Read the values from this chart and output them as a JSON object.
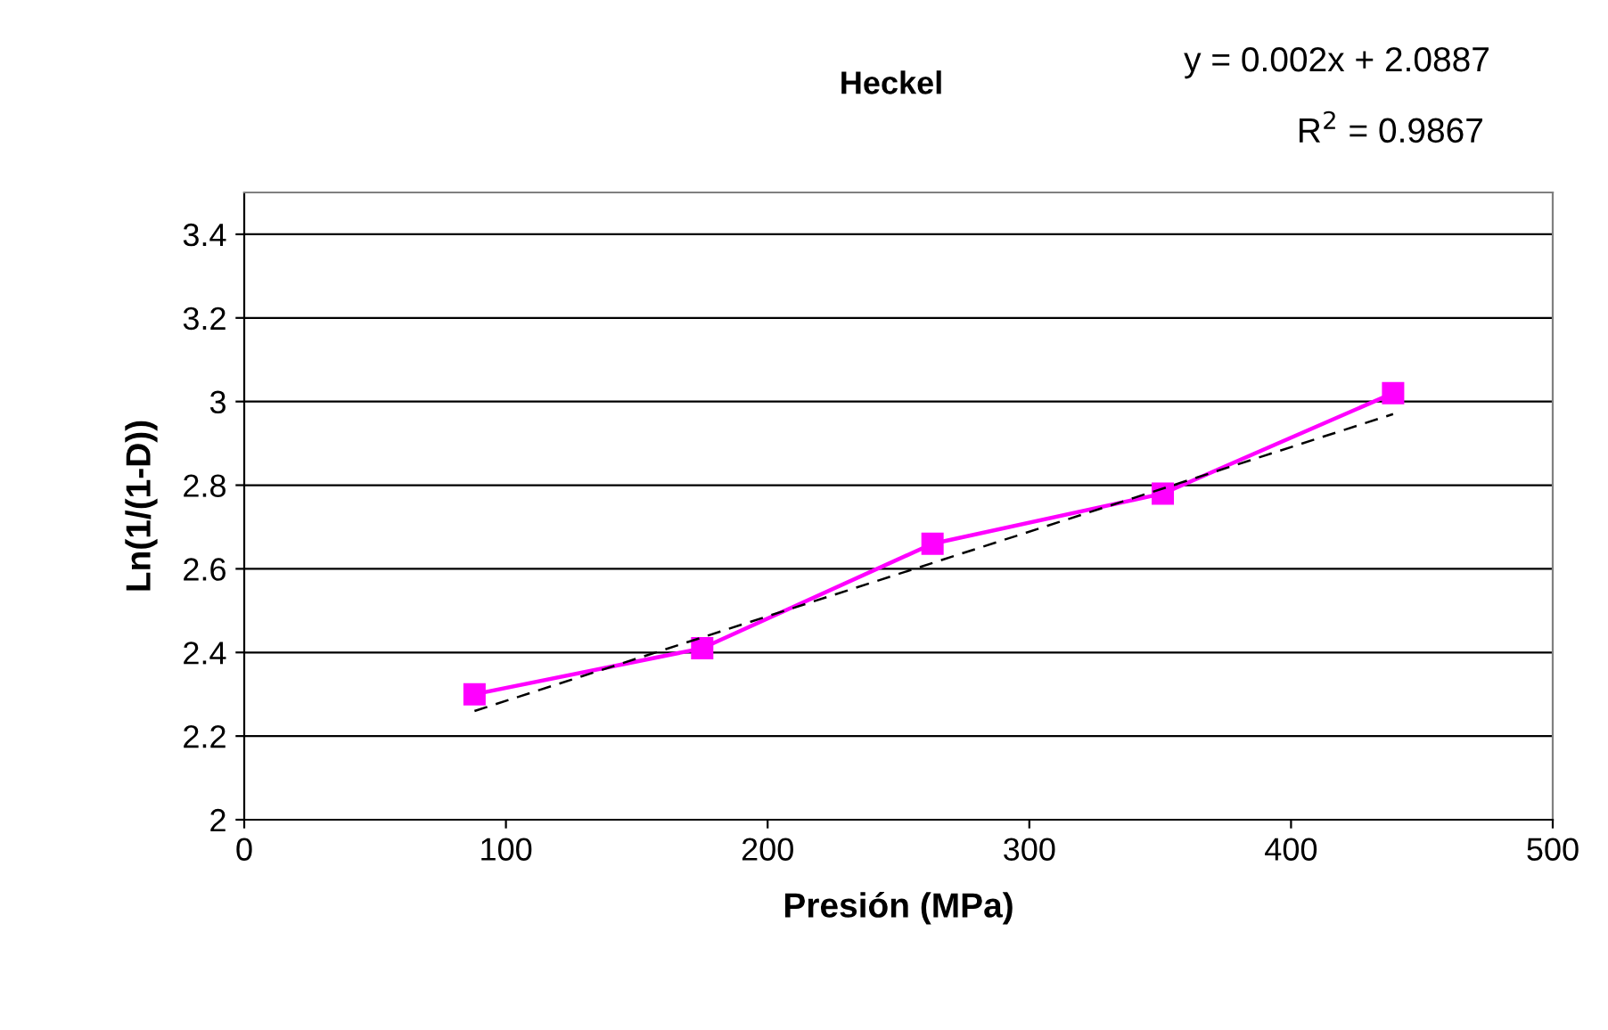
{
  "chart_data": {
    "type": "line",
    "title": "Heckel",
    "xlabel": "Presión (MPa)",
    "ylabel": "Ln(1/(1-D))",
    "annotations": [
      "y = 0.002x + 2.0887",
      "R$^{2}$ = 0.9867"
    ],
    "x": [
      88,
      175,
      263,
      351,
      439
    ],
    "series": [
      {
        "color": "#ff00ff",
        "marker": "square",
        "line_style": "solid",
        "values": [
          2.3,
          2.41,
          2.66,
          2.78,
          3.02
        ]
      },
      {
        "color": "#000000",
        "marker": "none",
        "line_style": "dashed",
        "x": [
          88,
          439
        ],
        "values": [
          2.26,
          2.97
        ]
      }
    ],
    "xlim": [
      0,
      500
    ],
    "xticks": [
      0,
      100,
      200,
      300,
      400,
      500
    ],
    "ylim": [
      2,
      3.5
    ],
    "yticks": [
      2,
      2.2,
      2.4,
      2.6,
      2.8,
      3,
      3.2,
      3.4
    ],
    "grid": "y",
    "legend": false
  }
}
